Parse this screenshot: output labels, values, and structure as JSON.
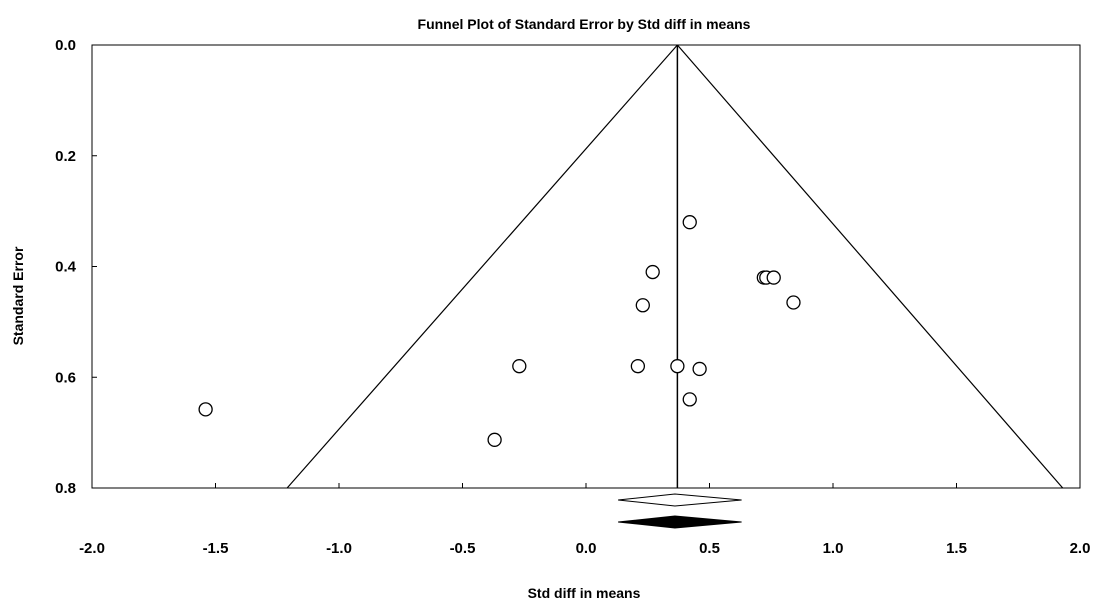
{
  "chart_data": {
    "type": "scatter",
    "title": "Funnel Plot of Standard Error by Std diff in means",
    "xlabel": "Std diff in means",
    "ylabel": "Standard Error",
    "xlim": [
      -2.0,
      2.0
    ],
    "ylim": [
      0.0,
      0.8
    ],
    "y_inverted": true,
    "x_ticks": [
      "-2.0",
      "-1.5",
      "-1.0",
      "-0.5",
      "0.0",
      "0.5",
      "1.0",
      "1.5",
      "2.0"
    ],
    "y_ticks": [
      "0.0",
      "0.2",
      "0.4",
      "0.6",
      "0.8"
    ],
    "x_tick_values": [
      -2.0,
      -1.5,
      -1.0,
      -0.5,
      0.0,
      0.5,
      1.0,
      1.5,
      2.0
    ],
    "y_tick_values": [
      0.0,
      0.2,
      0.4,
      0.6,
      0.8
    ],
    "pooled_effect": 0.37,
    "funnel_base_se": 0.8,
    "funnel_bottom_x": [
      -1.21,
      1.93
    ],
    "points": [
      {
        "x": 0.42,
        "y": 0.32
      },
      {
        "x": 0.27,
        "y": 0.41
      },
      {
        "x": 0.72,
        "y": 0.42
      },
      {
        "x": 0.73,
        "y": 0.42
      },
      {
        "x": 0.76,
        "y": 0.42
      },
      {
        "x": 0.23,
        "y": 0.47
      },
      {
        "x": 0.84,
        "y": 0.465
      },
      {
        "x": -0.27,
        "y": 0.58
      },
      {
        "x": 0.21,
        "y": 0.58
      },
      {
        "x": 0.37,
        "y": 0.58
      },
      {
        "x": 0.46,
        "y": 0.585
      },
      {
        "x": 0.42,
        "y": 0.64
      },
      {
        "x": -1.54,
        "y": 0.658
      },
      {
        "x": -0.37,
        "y": 0.713
      }
    ],
    "summary_diamonds": [
      {
        "kind": "open",
        "center": 0.36,
        "lower": 0.13,
        "upper": 0.63
      },
      {
        "kind": "filled",
        "center": 0.36,
        "lower": 0.13,
        "upper": 0.63
      }
    ],
    "grid": false,
    "legend": "none"
  }
}
